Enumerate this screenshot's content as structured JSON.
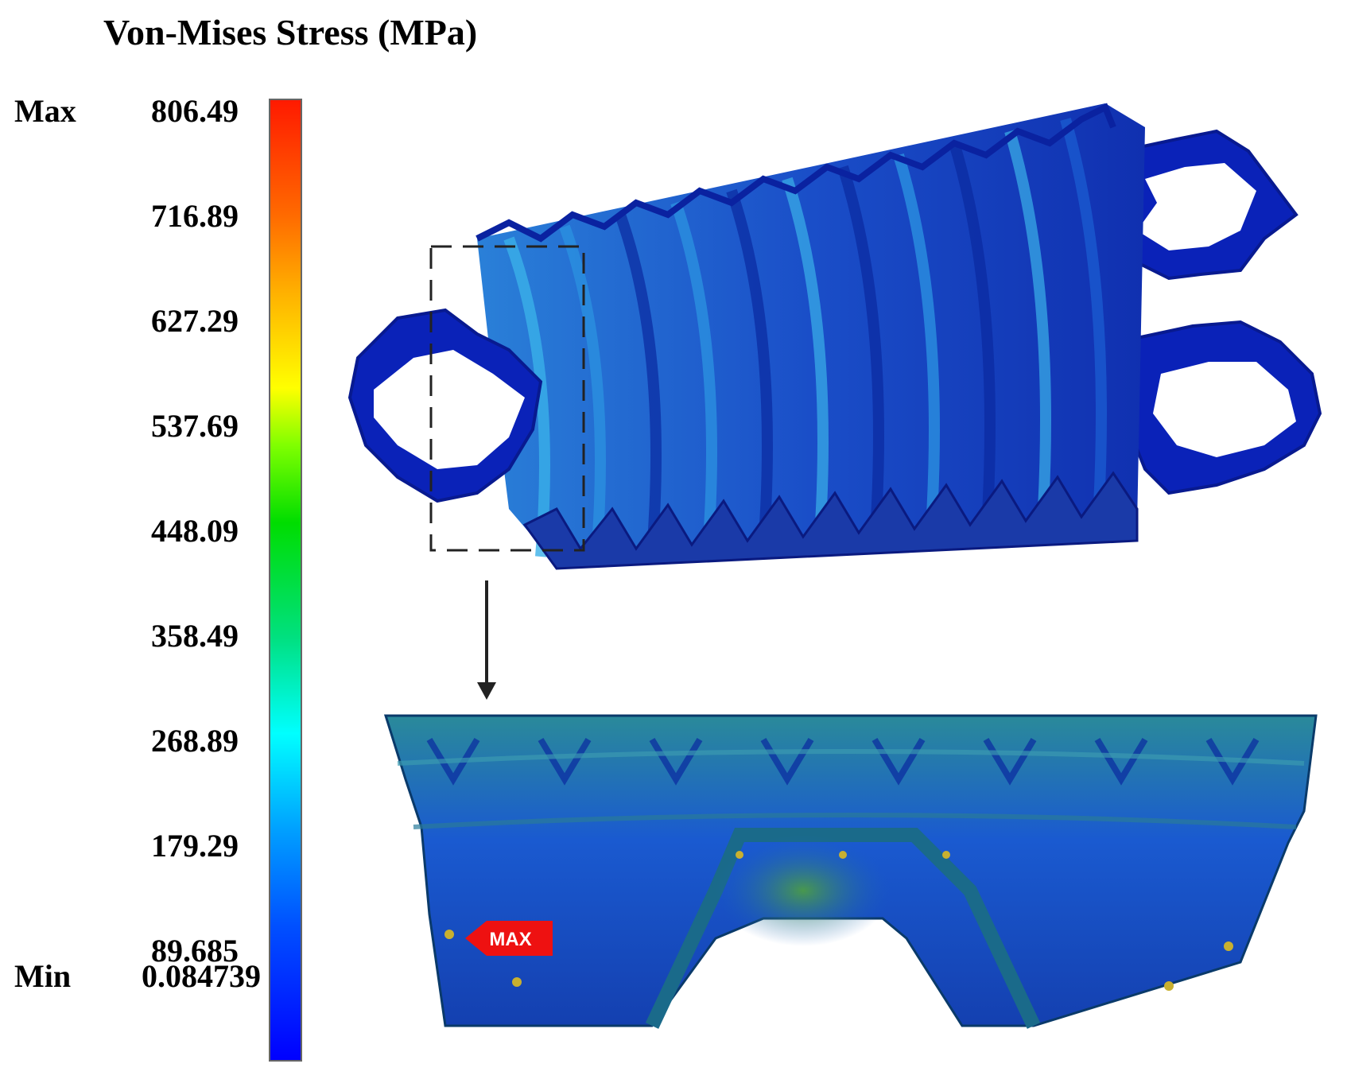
{
  "legend": {
    "title": "Von-Mises Stress (MPa)",
    "max_label": "Max",
    "min_label": "Min",
    "ticks": [
      "806.49",
      "716.89",
      "627.29",
      "537.69",
      "448.09",
      "358.49",
      "268.89",
      "179.29",
      "89.685",
      "0.084739"
    ],
    "colors": [
      "#ff0000",
      "#ff7f00",
      "#ffff00",
      "#00e600",
      "#00ffff",
      "#0064ff",
      "#0000ff"
    ]
  },
  "annotation": {
    "max_marker": "MAX",
    "marker_color": "#ee1111"
  },
  "palette": {
    "body_dark": "#0a1c8c",
    "body_mid": "#1a5acc",
    "body_light": "#3aa0e0",
    "body_green": "#2a9a7a",
    "frame_blue": "#0a22c8"
  }
}
